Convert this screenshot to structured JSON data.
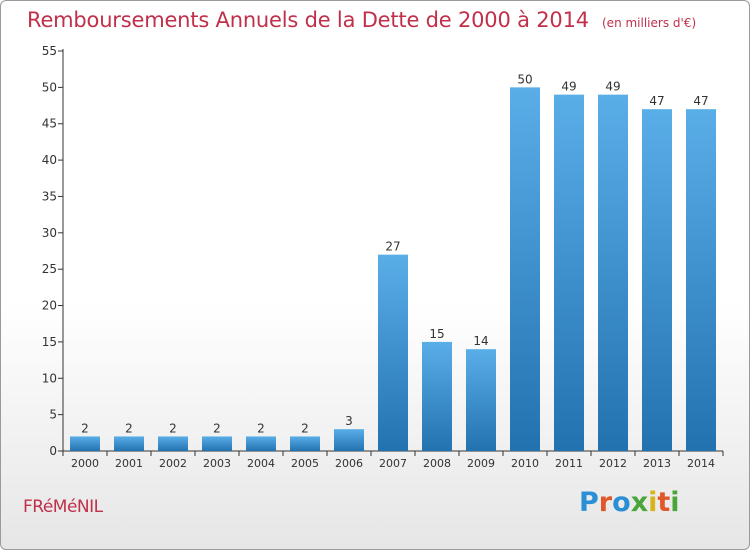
{
  "title": "Remboursements Annuels de la Dette de 2000 à 2014",
  "unit": "(en milliers d'€)",
  "commune": "FRéMéNIL",
  "brand": {
    "text": "Proxiti",
    "letter_colors": [
      "#2b8fd6",
      "#e0572a",
      "#2b8fd6",
      "#4aa63a",
      "#d9b31a",
      "#e0572a",
      "#4aa63a"
    ]
  },
  "colors": {
    "title": "#c0304a",
    "bar_light": "#5aaee8",
    "bar_dark": "#2272b0",
    "axis": "#333333",
    "grid": "#cccccc"
  },
  "chart_data": {
    "type": "bar",
    "categories": [
      "2000",
      "2001",
      "2002",
      "2003",
      "2004",
      "2005",
      "2006",
      "2007",
      "2008",
      "2009",
      "2010",
      "2011",
      "2012",
      "2013",
      "2014"
    ],
    "values": [
      2,
      2,
      2,
      2,
      2,
      2,
      3,
      27,
      15,
      14,
      50,
      49,
      49,
      47,
      47
    ],
    "ylim": [
      0,
      55
    ],
    "yticks": [
      0,
      5,
      10,
      15,
      20,
      25,
      30,
      35,
      40,
      45,
      50,
      55
    ],
    "grid": false,
    "data_labels": true
  }
}
